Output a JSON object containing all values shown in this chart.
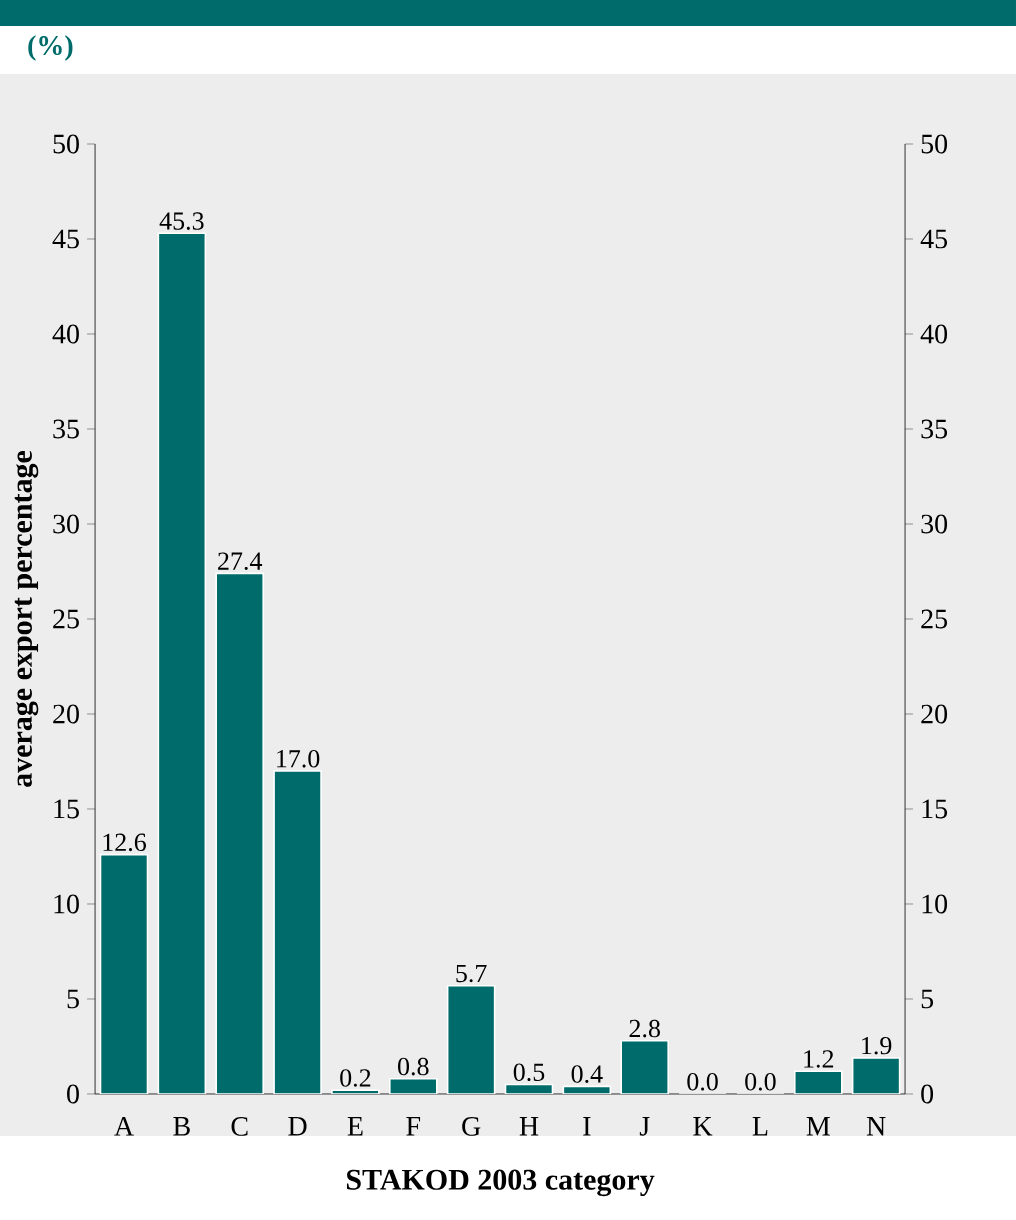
{
  "chart_data": {
    "type": "bar",
    "subtitle": "(%)",
    "xlabel": "STAKOD 2003 category",
    "ylabel": "average export percentage",
    "categories": [
      "A",
      "B",
      "C",
      "D",
      "E",
      "F",
      "G",
      "H",
      "I",
      "J",
      "K",
      "L",
      "M",
      "N"
    ],
    "values": [
      12.6,
      45.3,
      27.4,
      17.0,
      0.2,
      0.8,
      5.7,
      0.5,
      0.4,
      2.8,
      0.0,
      0.0,
      1.2,
      1.9
    ],
    "value_labels": [
      "12.6",
      "45.3",
      "27.4",
      "17.0",
      "0.2",
      "0.8",
      "5.7",
      "0.5",
      "0.4",
      "2.8",
      "0.0",
      "0.0",
      "1.2",
      "1.9"
    ],
    "color": "#006b6b",
    "ylim": [
      0,
      50
    ],
    "yticks": [
      0,
      5,
      10,
      15,
      20,
      25,
      30,
      35,
      40,
      45,
      50
    ],
    "y2lim": [
      0,
      50
    ],
    "y2ticks": [
      0,
      5,
      10,
      15,
      20,
      25,
      30,
      35,
      40,
      45,
      50
    ]
  }
}
